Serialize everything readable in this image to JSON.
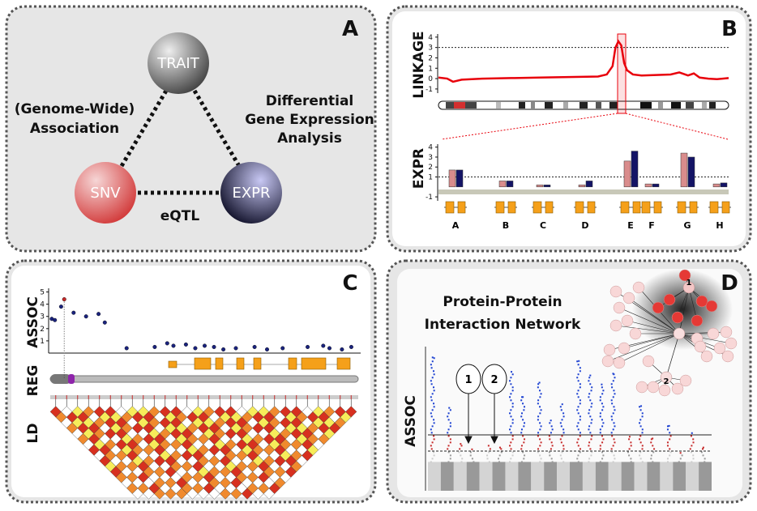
{
  "panel_a": {
    "letter": "A",
    "trait": "TRAIT",
    "snv": "SNV",
    "expr": "EXPR",
    "association": [
      "(Genome-Wide)",
      "Association"
    ],
    "differential": [
      "Differential",
      "Gene Expression",
      "Analysis"
    ],
    "eqtl": "eQTL"
  },
  "panel_b": {
    "letter": "B",
    "linkage": {
      "label": "LINKAGE",
      "ylim": [
        -1.4,
        4.3
      ],
      "yticks": [
        -1,
        0,
        1,
        2,
        3,
        4
      ],
      "threshold": 3,
      "color": "#e8000b",
      "x": [
        0,
        3,
        5,
        8,
        15,
        25,
        35,
        45,
        55,
        58,
        60,
        61,
        62,
        63,
        64,
        65,
        67,
        70,
        75,
        80,
        83,
        86,
        88,
        90,
        93,
        96,
        100
      ],
      "values": [
        0.1,
        0,
        -0.3,
        -0.1,
        0,
        0.05,
        0.1,
        0.15,
        0.2,
        0.4,
        1.2,
        3.0,
        3.6,
        3.2,
        1.5,
        0.8,
        0.4,
        0.3,
        0.35,
        0.4,
        0.6,
        0.3,
        0.5,
        0.1,
        0,
        -0.05,
        0.05
      ]
    },
    "expr": {
      "label": "EXPR",
      "ylim": [
        -1.4,
        4.3
      ],
      "yticks": [
        -1,
        1,
        2,
        3,
        4
      ],
      "threshold": 1,
      "genes": [
        "A",
        "B",
        "C",
        "D",
        "E",
        "F",
        "G",
        "H"
      ],
      "series": [
        {
          "color": "#d98c8c",
          "values": [
            1.7,
            0.6,
            0.2,
            0.2,
            2.6,
            0.3,
            3.4,
            0.3
          ]
        },
        {
          "color": "#141466",
          "values": [
            1.7,
            0.6,
            0.2,
            0.6,
            3.6,
            0.3,
            3.0,
            0.4
          ]
        }
      ]
    }
  },
  "panel_c": {
    "letter": "C",
    "assoc_label": "ASSOC",
    "reg_label": "REG",
    "ld_label": "LD",
    "ylim": [
      0,
      5.3
    ],
    "yticks": [
      1,
      2,
      3,
      4,
      5
    ],
    "color": "#1a237e",
    "highlight_color": "#c62828",
    "x": [
      1,
      2,
      4,
      5,
      8,
      12,
      16,
      18,
      25,
      34,
      38,
      40,
      44,
      47,
      50,
      53,
      56,
      60,
      66,
      70,
      75,
      83,
      88,
      90,
      94,
      97
    ],
    "values": [
      2.8,
      2.7,
      3.8,
      4.4,
      3.3,
      3.0,
      3.2,
      2.5,
      0.4,
      0.5,
      0.8,
      0.6,
      0.7,
      0.4,
      0.6,
      0.5,
      0.3,
      0.4,
      0.5,
      0.3,
      0.4,
      0.5,
      0.6,
      0.4,
      0.3,
      0.5
    ],
    "highlight": 3
  },
  "panel_d": {
    "letter": "D",
    "title": [
      "Protein-Protein",
      "Interaction Network"
    ],
    "assoc_label": "ASSOC",
    "network_labels": [
      "1",
      "2"
    ],
    "arrow_labels": [
      "1",
      "2"
    ],
    "ylim": [
      0,
      8
    ],
    "threshold": 3.1,
    "suggestive": 2.2,
    "peaks": [
      7.4,
      4.6,
      2.6,
      2.3,
      2.5,
      2.4,
      6.6,
      5.2,
      6.0,
      3.9,
      4.8,
      7.2,
      6.4,
      5.9,
      6.5,
      3.0,
      4.7,
      2.9,
      3.6,
      2.1,
      3.2,
      2.4
    ]
  }
}
